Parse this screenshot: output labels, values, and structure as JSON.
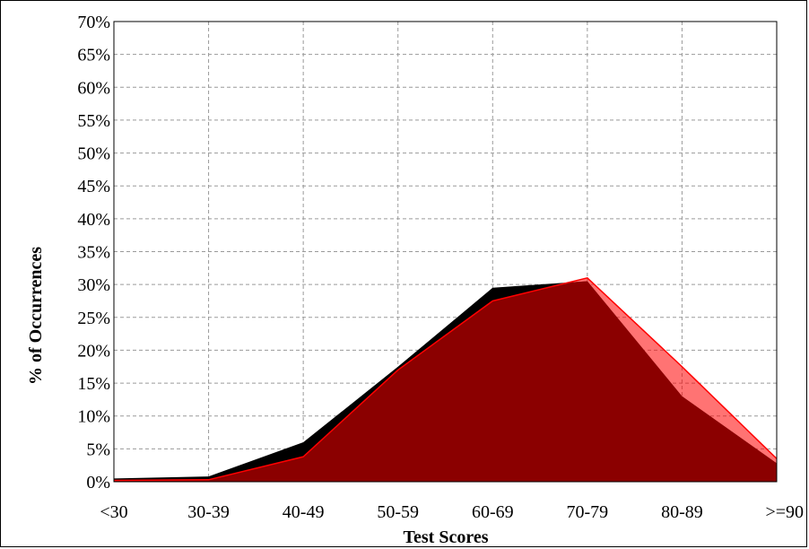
{
  "chart_data": {
    "type": "area",
    "title": "",
    "xlabel": "Test Scores",
    "ylabel": "% of Occurrences",
    "categories": [
      "<30",
      "30-39",
      "40-49",
      "50-59",
      "60-69",
      "70-79",
      "80-89",
      ">=90"
    ],
    "y_ticks": [
      "0%",
      "5%",
      "10%",
      "15%",
      "20%",
      "25%",
      "30%",
      "35%",
      "40%",
      "45%",
      "50%",
      "55%",
      "60%",
      "65%",
      "70%"
    ],
    "ylim": [
      0,
      70
    ],
    "grid": true,
    "legend": "none",
    "series": [
      {
        "values": [
          0.5,
          0.8,
          6.0,
          17.5,
          29.5,
          30.5,
          13.0,
          2.8
        ],
        "color": "#000000",
        "opacity": 1.0
      },
      {
        "values": [
          0.2,
          0.3,
          3.8,
          17.0,
          27.5,
          31.0,
          17.5,
          3.5
        ],
        "color": "#ff0000",
        "opacity": 0.55
      }
    ],
    "overlap_color": "#8b0000"
  }
}
